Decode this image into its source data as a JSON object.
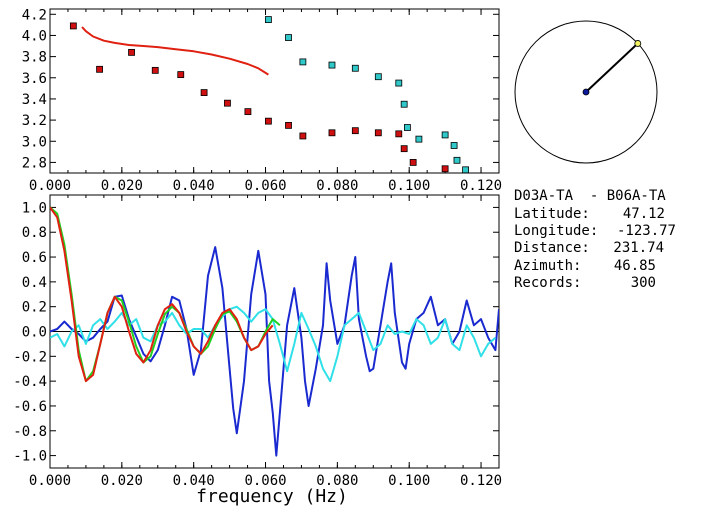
{
  "chart_data": [
    {
      "type": "scatter",
      "xlim": [
        0.0,
        0.125
      ],
      "ylim": [
        2.7,
        4.25
      ],
      "x_ticks": [
        "0.000",
        "0.020",
        "0.040",
        "0.060",
        "0.080",
        "0.100",
        "0.120"
      ],
      "y_ticks": [
        "2.8",
        "3.0",
        "3.2",
        "3.4",
        "3.6",
        "3.8",
        "4.0",
        "4.2"
      ],
      "series": [
        {
          "kind": "markers",
          "color": "#d01010",
          "points": [
            [
              0.0065,
              4.09
            ],
            [
              0.0138,
              3.68
            ],
            [
              0.0227,
              3.84
            ],
            [
              0.0293,
              3.67
            ],
            [
              0.0364,
              3.63
            ],
            [
              0.0429,
              3.46
            ],
            [
              0.0494,
              3.36
            ],
            [
              0.0551,
              3.28
            ],
            [
              0.0608,
              3.19
            ],
            [
              0.0664,
              3.15
            ],
            [
              0.0704,
              3.05
            ],
            [
              0.0785,
              3.08
            ],
            [
              0.085,
              3.1
            ],
            [
              0.0914,
              3.08
            ],
            [
              0.0971,
              3.07
            ],
            [
              0.0986,
              2.93
            ],
            [
              0.1011,
              2.8
            ],
            [
              0.11,
              2.74
            ]
          ]
        },
        {
          "kind": "markers",
          "color": "#30c8c8",
          "points": [
            [
              0.0608,
              4.15
            ],
            [
              0.0664,
              3.98
            ],
            [
              0.0704,
              3.75
            ],
            [
              0.0785,
              3.72
            ],
            [
              0.085,
              3.69
            ],
            [
              0.0914,
              3.61
            ],
            [
              0.0971,
              3.55
            ],
            [
              0.0986,
              3.35
            ],
            [
              0.0995,
              3.13
            ],
            [
              0.1027,
              3.02
            ],
            [
              0.11,
              3.06
            ],
            [
              0.1125,
              2.96
            ],
            [
              0.1133,
              2.82
            ],
            [
              0.1157,
              2.73
            ]
          ]
        },
        {
          "kind": "line",
          "color": "#e02010",
          "points": [
            [
              0.0089,
              4.08
            ],
            [
              0.01,
              4.04
            ],
            [
              0.012,
              3.99
            ],
            [
              0.015,
              3.95
            ],
            [
              0.018,
              3.93
            ],
            [
              0.022,
              3.91
            ],
            [
              0.026,
              3.9
            ],
            [
              0.03,
              3.89
            ],
            [
              0.035,
              3.87
            ],
            [
              0.04,
              3.85
            ],
            [
              0.045,
              3.82
            ],
            [
              0.05,
              3.78
            ],
            [
              0.055,
              3.73
            ],
            [
              0.058,
              3.69
            ],
            [
              0.0608,
              3.63
            ]
          ]
        }
      ]
    },
    {
      "type": "line",
      "xlim": [
        0.0,
        0.125
      ],
      "ylim": [
        -1.1,
        1.1
      ],
      "xlabel": "frequency (Hz)",
      "x_ticks": [
        "0.000",
        "0.020",
        "0.040",
        "0.060",
        "0.080",
        "0.100",
        "0.120"
      ],
      "y_ticks": [
        "1.0",
        "0.8",
        "0.6",
        "0.4",
        "0.2",
        "0.0",
        "-0.2",
        "-0.4",
        "-0.6",
        "-0.8",
        "-1.0"
      ],
      "series": [
        {
          "color": "#1a2ad0",
          "points": [
            [
              0.0,
              0.0
            ],
            [
              0.002,
              0.02
            ],
            [
              0.004,
              0.08
            ],
            [
              0.006,
              0.02
            ],
            [
              0.008,
              -0.02
            ],
            [
              0.01,
              -0.08
            ],
            [
              0.012,
              -0.05
            ],
            [
              0.014,
              0.02
            ],
            [
              0.016,
              0.08
            ],
            [
              0.018,
              0.28
            ],
            [
              0.02,
              0.29
            ],
            [
              0.022,
              0.1
            ],
            [
              0.024,
              -0.04
            ],
            [
              0.026,
              -0.18
            ],
            [
              0.028,
              -0.24
            ],
            [
              0.03,
              -0.15
            ],
            [
              0.032,
              0.05
            ],
            [
              0.034,
              0.28
            ],
            [
              0.036,
              0.25
            ],
            [
              0.038,
              0.02
            ],
            [
              0.04,
              -0.35
            ],
            [
              0.042,
              -0.15
            ],
            [
              0.044,
              0.45
            ],
            [
              0.046,
              0.68
            ],
            [
              0.048,
              0.35
            ],
            [
              0.05,
              -0.3
            ],
            [
              0.051,
              -0.62
            ],
            [
              0.052,
              -0.82
            ],
            [
              0.054,
              -0.4
            ],
            [
              0.056,
              0.3
            ],
            [
              0.058,
              0.65
            ],
            [
              0.06,
              0.3
            ],
            [
              0.061,
              -0.4
            ],
            [
              0.062,
              -0.65
            ],
            [
              0.063,
              -1.0
            ],
            [
              0.064,
              -0.65
            ],
            [
              0.066,
              0.05
            ],
            [
              0.068,
              0.35
            ],
            [
              0.07,
              -0.05
            ],
            [
              0.071,
              -0.4
            ],
            [
              0.072,
              -0.6
            ],
            [
              0.074,
              -0.3
            ],
            [
              0.076,
              0.05
            ],
            [
              0.077,
              0.55
            ],
            [
              0.078,
              0.25
            ],
            [
              0.08,
              -0.1
            ],
            [
              0.082,
              0.05
            ],
            [
              0.084,
              0.45
            ],
            [
              0.085,
              0.6
            ],
            [
              0.086,
              0.1
            ],
            [
              0.088,
              -0.2
            ],
            [
              0.089,
              -0.32
            ],
            [
              0.09,
              -0.3
            ],
            [
              0.092,
              0.05
            ],
            [
              0.094,
              0.4
            ],
            [
              0.095,
              0.55
            ],
            [
              0.096,
              0.15
            ],
            [
              0.098,
              -0.25
            ],
            [
              0.099,
              -0.3
            ],
            [
              0.1,
              -0.1
            ],
            [
              0.102,
              0.1
            ],
            [
              0.104,
              0.15
            ],
            [
              0.106,
              0.28
            ],
            [
              0.108,
              0.05
            ],
            [
              0.11,
              0.1
            ],
            [
              0.112,
              -0.1
            ],
            [
              0.114,
              0.0
            ],
            [
              0.116,
              0.25
            ],
            [
              0.118,
              0.05
            ],
            [
              0.12,
              0.1
            ],
            [
              0.122,
              -0.05
            ],
            [
              0.124,
              -0.15
            ],
            [
              0.125,
              0.18
            ]
          ]
        },
        {
          "color": "#30e0e8",
          "points": [
            [
              0.0,
              -0.05
            ],
            [
              0.002,
              -0.02
            ],
            [
              0.004,
              -0.12
            ],
            [
              0.006,
              0.0
            ],
            [
              0.008,
              0.05
            ],
            [
              0.01,
              -0.1
            ],
            [
              0.012,
              0.05
            ],
            [
              0.014,
              0.1
            ],
            [
              0.016,
              0.02
            ],
            [
              0.018,
              0.08
            ],
            [
              0.02,
              0.15
            ],
            [
              0.022,
              0.05
            ],
            [
              0.024,
              0.1
            ],
            [
              0.026,
              -0.05
            ],
            [
              0.028,
              -0.08
            ],
            [
              0.03,
              0.05
            ],
            [
              0.032,
              0.08
            ],
            [
              0.034,
              0.15
            ],
            [
              0.036,
              0.05
            ],
            [
              0.038,
              -0.02
            ],
            [
              0.04,
              0.02
            ],
            [
              0.042,
              0.02
            ],
            [
              0.044,
              -0.05
            ],
            [
              0.046,
              0.05
            ],
            [
              0.048,
              0.12
            ],
            [
              0.05,
              0.18
            ],
            [
              0.052,
              0.2
            ],
            [
              0.054,
              0.15
            ],
            [
              0.056,
              0.08
            ],
            [
              0.058,
              0.15
            ],
            [
              0.06,
              0.18
            ],
            [
              0.062,
              0.1
            ],
            [
              0.064,
              -0.1
            ],
            [
              0.066,
              -0.32
            ],
            [
              0.068,
              -0.1
            ],
            [
              0.07,
              0.15
            ],
            [
              0.072,
              0.02
            ],
            [
              0.074,
              -0.12
            ],
            [
              0.076,
              -0.3
            ],
            [
              0.078,
              -0.4
            ],
            [
              0.08,
              -0.2
            ],
            [
              0.082,
              0.05
            ],
            [
              0.084,
              0.1
            ],
            [
              0.086,
              0.15
            ],
            [
              0.088,
              0.0
            ],
            [
              0.09,
              -0.15
            ],
            [
              0.092,
              -0.1
            ],
            [
              0.094,
              0.05
            ],
            [
              0.096,
              -0.02
            ],
            [
              0.098,
              0.0
            ],
            [
              0.1,
              -0.02
            ],
            [
              0.102,
              0.1
            ],
            [
              0.104,
              0.05
            ],
            [
              0.106,
              -0.1
            ],
            [
              0.108,
              -0.05
            ],
            [
              0.11,
              0.1
            ],
            [
              0.112,
              -0.1
            ],
            [
              0.114,
              -0.15
            ],
            [
              0.116,
              0.05
            ],
            [
              0.118,
              -0.05
            ],
            [
              0.12,
              -0.2
            ],
            [
              0.122,
              -0.1
            ],
            [
              0.124,
              -0.05
            ]
          ]
        },
        {
          "color": "#20d020",
          "points": [
            [
              0.0,
              1.0
            ],
            [
              0.002,
              0.95
            ],
            [
              0.004,
              0.7
            ],
            [
              0.006,
              0.3
            ],
            [
              0.008,
              -0.15
            ],
            [
              0.01,
              -0.4
            ],
            [
              0.012,
              -0.32
            ],
            [
              0.014,
              -0.1
            ],
            [
              0.016,
              0.15
            ],
            [
              0.018,
              0.28
            ],
            [
              0.02,
              0.25
            ],
            [
              0.022,
              0.08
            ],
            [
              0.024,
              -0.12
            ],
            [
              0.026,
              -0.25
            ],
            [
              0.028,
              -0.2
            ],
            [
              0.03,
              -0.02
            ],
            [
              0.032,
              0.14
            ],
            [
              0.034,
              0.2
            ],
            [
              0.036,
              0.15
            ],
            [
              0.038,
              0.02
            ],
            [
              0.04,
              -0.12
            ],
            [
              0.042,
              -0.18
            ],
            [
              0.044,
              -0.12
            ],
            [
              0.046,
              0.02
            ],
            [
              0.048,
              0.14
            ],
            [
              0.05,
              0.16
            ],
            [
              0.052,
              0.08
            ],
            [
              0.054,
              -0.05
            ],
            [
              0.056,
              -0.15
            ],
            [
              0.058,
              -0.12
            ],
            [
              0.06,
              0.0
            ],
            [
              0.062,
              0.1
            ],
            [
              0.064,
              0.05
            ]
          ]
        },
        {
          "color": "#e02010",
          "points": [
            [
              0.0,
              1.0
            ],
            [
              0.002,
              0.92
            ],
            [
              0.004,
              0.65
            ],
            [
              0.006,
              0.25
            ],
            [
              0.008,
              -0.2
            ],
            [
              0.01,
              -0.4
            ],
            [
              0.012,
              -0.35
            ],
            [
              0.014,
              -0.1
            ],
            [
              0.016,
              0.15
            ],
            [
              0.018,
              0.28
            ],
            [
              0.02,
              0.2
            ],
            [
              0.022,
              0.0
            ],
            [
              0.024,
              -0.18
            ],
            [
              0.026,
              -0.25
            ],
            [
              0.028,
              -0.15
            ],
            [
              0.03,
              0.05
            ],
            [
              0.032,
              0.18
            ],
            [
              0.034,
              0.22
            ],
            [
              0.036,
              0.15
            ],
            [
              0.038,
              0.0
            ],
            [
              0.04,
              -0.12
            ],
            [
              0.042,
              -0.18
            ],
            [
              0.044,
              -0.08
            ],
            [
              0.046,
              0.05
            ],
            [
              0.048,
              0.15
            ],
            [
              0.05,
              0.18
            ],
            [
              0.052,
              0.1
            ],
            [
              0.054,
              -0.05
            ],
            [
              0.056,
              -0.15
            ],
            [
              0.058,
              -0.12
            ],
            [
              0.06,
              -0.02
            ],
            [
              0.062,
              0.05
            ]
          ]
        }
      ]
    }
  ],
  "azimuth_dial": {
    "azimuth_deg": 46.85,
    "needle_color": "#000000",
    "center_color": "#0a1a9a",
    "tip_color": "#f0f060"
  },
  "station_info": {
    "pair": "D03A-TA  - B06A-TA",
    "latitude_label": "Latitude:",
    "latitude_value": "47.12",
    "longitude_label": "Longitude:",
    "longitude_value": "-123.77",
    "distance_label": "Distance:",
    "distance_value": "231.74",
    "azimuth_label": "Azimuth:",
    "azimuth_value": "46.85",
    "records_label": "Records:",
    "records_value": "300"
  }
}
